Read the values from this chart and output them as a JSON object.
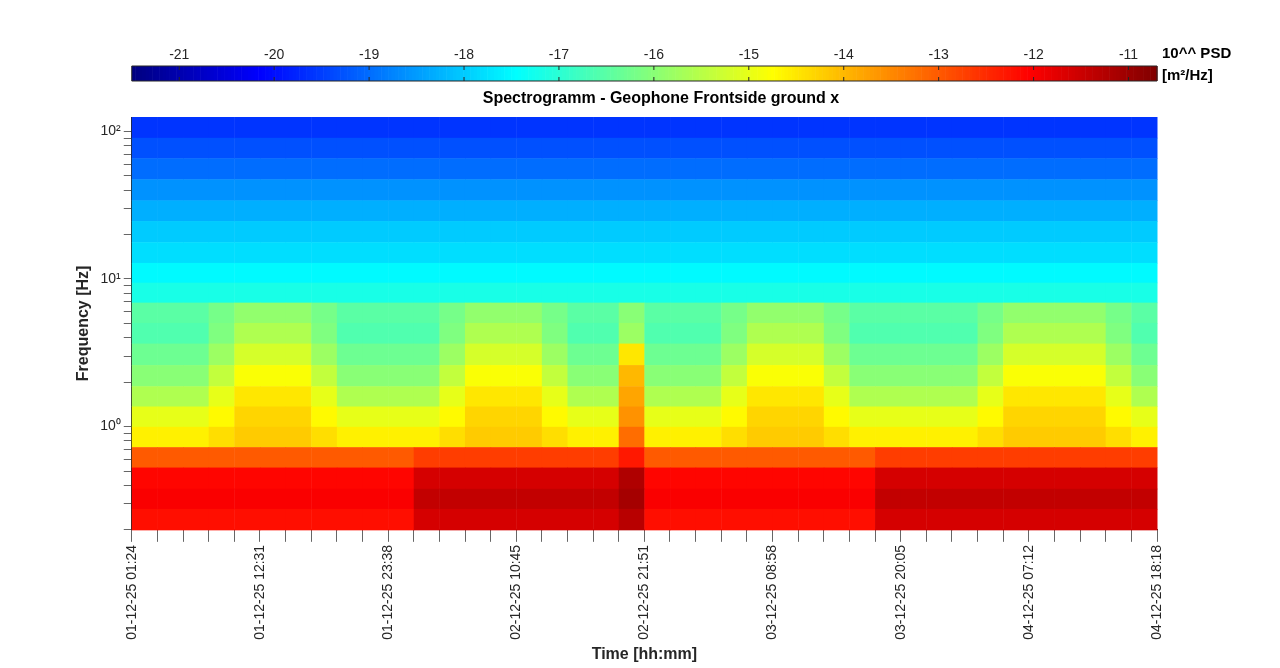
{
  "chart_data": {
    "type": "heatmap",
    "title": "Spectrogramm - Geophone Frontside ground x",
    "xlabel": "Time [hh:mm]",
    "ylabel": "Frequency [Hz]",
    "clabel": "10^^ PSD [m²/Hz]",
    "x": [
      "--12-01T02:31",
      "--12-01T04:44",
      "--12-01T06:57",
      "--12-01T09:11",
      "--12-01T11:24",
      "--12-01T13:38",
      "--12-01T15:51",
      "--12-01T18:04",
      "--12-01T20:18",
      "--12-01T22:31",
      "--12-02T00:44",
      "--12-02T02:58",
      "--12-02T05:11",
      "--12-02T07:24",
      "--12-02T09:38",
      "--12-02T11:51",
      "--12-02T14:04",
      "--12-02T16:18",
      "--12-02T18:31",
      "--12-02T20:44",
      "--12-02T22:58",
      "--12-03T01:11",
      "--12-03T03:24",
      "--12-03T05:38",
      "--12-03T07:51",
      "--12-03T10:04",
      "--12-03T12:18",
      "--12-03T14:31",
      "--12-03T16:44",
      "--12-03T18:58",
      "--12-03T21:11",
      "--12-03T23:24",
      "--12-04T01:38",
      "--12-04T03:51",
      "--12-04T06:04",
      "--12-04T08:18",
      "--12-04T10:31",
      "--12-04T12:44",
      "--12-04T14:58",
      "--12-04T17:11"
    ],
    "y": [
      106,
      77,
      56,
      40,
      29,
      21,
      15,
      11,
      8.1,
      5.9,
      4.3,
      3.1,
      2.2,
      1.6,
      1.17,
      0.85,
      0.62,
      0.45,
      0.32,
      0.24
    ],
    "cells": [
      [
        -19.6,
        -19.6,
        -19.6,
        -19.6,
        -19.6,
        -19.6,
        -19.6,
        -19.6,
        -19.6,
        -19.6,
        -19.6,
        -19.6,
        -19.6,
        -19.6,
        -19.6,
        -19.6,
        -19.6,
        -19.6,
        -19.6,
        -19.6,
        -19.6,
        -19.6,
        -19.6,
        -19.6,
        -19.6,
        -19.6,
        -19.6,
        -19.6,
        -19.6,
        -19.6,
        -19.6,
        -19.6,
        -19.6,
        -19.6,
        -19.6,
        -19.6,
        -19.6,
        -19.6,
        -19.6,
        -19.6
      ],
      [
        -19.3,
        -19.3,
        -19.3,
        -19.3,
        -19.3,
        -19.3,
        -19.3,
        -19.3,
        -19.3,
        -19.3,
        -19.3,
        -19.3,
        -19.3,
        -19.3,
        -19.3,
        -19.3,
        -19.3,
        -19.3,
        -19.3,
        -19.3,
        -19.3,
        -19.3,
        -19.3,
        -19.3,
        -19.3,
        -19.3,
        -19.3,
        -19.3,
        -19.3,
        -19.3,
        -19.3,
        -19.3,
        -19.3,
        -19.3,
        -19.3,
        -19.3,
        -19.3,
        -19.3,
        -19.3,
        -19.3
      ],
      [
        -19.0,
        -19.0,
        -19.0,
        -19.0,
        -19.0,
        -19.0,
        -19.0,
        -19.0,
        -19.0,
        -19.0,
        -19.0,
        -19.0,
        -19.0,
        -19.0,
        -19.0,
        -19.0,
        -19.0,
        -19.0,
        -19.0,
        -19.0,
        -19.0,
        -19.0,
        -19.0,
        -19.0,
        -19.0,
        -19.0,
        -19.0,
        -19.0,
        -19.0,
        -19.0,
        -19.0,
        -19.0,
        -19.0,
        -19.0,
        -19.0,
        -19.0,
        -19.0,
        -19.0,
        -19.0,
        -19.0
      ],
      [
        -18.6,
        -18.6,
        -18.6,
        -18.6,
        -18.6,
        -18.6,
        -18.6,
        -18.6,
        -18.6,
        -18.6,
        -18.6,
        -18.6,
        -18.6,
        -18.6,
        -18.6,
        -18.6,
        -18.6,
        -18.6,
        -18.6,
        -18.6,
        -18.6,
        -18.6,
        -18.6,
        -18.6,
        -18.6,
        -18.6,
        -18.6,
        -18.6,
        -18.6,
        -18.6,
        -18.6,
        -18.6,
        -18.6,
        -18.6,
        -18.6,
        -18.6,
        -18.6,
        -18.6,
        -18.6,
        -18.6
      ],
      [
        -18.3,
        -18.3,
        -18.3,
        -18.3,
        -18.3,
        -18.3,
        -18.3,
        -18.3,
        -18.3,
        -18.3,
        -18.3,
        -18.3,
        -18.3,
        -18.3,
        -18.3,
        -18.3,
        -18.3,
        -18.3,
        -18.3,
        -18.3,
        -18.3,
        -18.3,
        -18.3,
        -18.3,
        -18.3,
        -18.3,
        -18.3,
        -18.3,
        -18.3,
        -18.3,
        -18.3,
        -18.3,
        -18.3,
        -18.3,
        -18.3,
        -18.3,
        -18.3,
        -18.3,
        -18.3,
        -18.3
      ],
      [
        -18.0,
        -18.0,
        -18.0,
        -18.0,
        -18.0,
        -18.0,
        -18.0,
        -18.0,
        -18.0,
        -18.0,
        -18.0,
        -18.0,
        -18.0,
        -18.0,
        -18.0,
        -18.0,
        -18.0,
        -18.0,
        -18.0,
        -18.0,
        -18.0,
        -18.0,
        -18.0,
        -18.0,
        -18.0,
        -18.0,
        -18.0,
        -18.0,
        -18.0,
        -18.0,
        -18.0,
        -18.0,
        -18.0,
        -18.0,
        -18.0,
        -18.0,
        -18.0,
        -18.0,
        -18.0,
        -18.0
      ],
      [
        -17.8,
        -17.8,
        -17.8,
        -17.8,
        -17.8,
        -17.8,
        -17.8,
        -17.8,
        -17.8,
        -17.8,
        -17.8,
        -17.8,
        -17.8,
        -17.8,
        -17.8,
        -17.8,
        -17.8,
        -17.8,
        -17.8,
        -17.8,
        -17.8,
        -17.8,
        -17.8,
        -17.8,
        -17.8,
        -17.8,
        -17.8,
        -17.8,
        -17.8,
        -17.8,
        -17.8,
        -17.8,
        -17.8,
        -17.8,
        -17.8,
        -17.8,
        -17.8,
        -17.8,
        -17.8,
        -17.8
      ],
      [
        -17.5,
        -17.5,
        -17.5,
        -17.5,
        -17.5,
        -17.5,
        -17.5,
        -17.5,
        -17.5,
        -17.5,
        -17.5,
        -17.5,
        -17.5,
        -17.5,
        -17.5,
        -17.5,
        -17.5,
        -17.5,
        -17.5,
        -17.5,
        -17.5,
        -17.5,
        -17.5,
        -17.5,
        -17.5,
        -17.5,
        -17.5,
        -17.5,
        -17.5,
        -17.5,
        -17.5,
        -17.5,
        -17.5,
        -17.5,
        -17.5,
        -17.5,
        -17.5,
        -17.5,
        -17.5,
        -17.5
      ],
      [
        -17.2,
        -17.2,
        -17.2,
        -17.2,
        -17.2,
        -17.2,
        -17.2,
        -17.2,
        -17.2,
        -17.2,
        -17.2,
        -17.2,
        -17.2,
        -17.2,
        -17.2,
        -17.2,
        -17.2,
        -17.2,
        -17.2,
        -17.2,
        -17.2,
        -17.2,
        -17.2,
        -17.2,
        -17.2,
        -17.2,
        -17.2,
        -17.2,
        -17.2,
        -17.2,
        -17.2,
        -17.2,
        -17.2,
        -17.2,
        -17.2,
        -17.2,
        -17.2,
        -17.2,
        -17.2,
        -17.2
      ],
      [
        -16.5,
        -16.5,
        -16.5,
        -16.2,
        -15.9,
        -15.9,
        -15.9,
        -16.2,
        -16.5,
        -16.5,
        -16.5,
        -16.5,
        -16.2,
        -15.9,
        -15.9,
        -15.9,
        -16.2,
        -16.5,
        -16.5,
        -16.0,
        -16.5,
        -16.5,
        -16.5,
        -16.2,
        -15.9,
        -15.9,
        -15.9,
        -16.2,
        -16.5,
        -16.5,
        -16.5,
        -16.5,
        -16.5,
        -16.2,
        -15.9,
        -15.9,
        -15.9,
        -15.9,
        -16.2,
        -16.5
      ],
      [
        -16.6,
        -16.6,
        -16.6,
        -16.1,
        -15.6,
        -15.6,
        -15.6,
        -16.1,
        -16.6,
        -16.6,
        -16.6,
        -16.6,
        -16.1,
        -15.6,
        -15.6,
        -15.6,
        -16.1,
        -16.6,
        -16.6,
        -15.8,
        -16.6,
        -16.6,
        -16.6,
        -16.1,
        -15.6,
        -15.6,
        -15.6,
        -16.1,
        -16.6,
        -16.6,
        -16.6,
        -16.6,
        -16.6,
        -16.1,
        -15.6,
        -15.6,
        -15.6,
        -15.6,
        -16.1,
        -16.6
      ],
      [
        -16.3,
        -16.3,
        -16.3,
        -15.8,
        -15.2,
        -15.2,
        -15.2,
        -15.8,
        -16.3,
        -16.3,
        -16.3,
        -16.3,
        -15.8,
        -15.2,
        -15.2,
        -15.2,
        -15.8,
        -16.3,
        -16.3,
        -14.5,
        -16.3,
        -16.3,
        -16.3,
        -15.8,
        -15.2,
        -15.2,
        -15.2,
        -15.8,
        -16.3,
        -16.3,
        -16.3,
        -16.3,
        -16.3,
        -15.8,
        -15.2,
        -15.2,
        -15.2,
        -15.2,
        -15.8,
        -16.3
      ],
      [
        -16.0,
        -16.0,
        -16.0,
        -15.4,
        -14.8,
        -14.8,
        -14.8,
        -15.4,
        -16.0,
        -16.0,
        -16.0,
        -16.0,
        -15.4,
        -14.8,
        -14.8,
        -14.8,
        -15.4,
        -16.0,
        -16.0,
        -14.0,
        -16.0,
        -16.0,
        -16.0,
        -15.4,
        -14.8,
        -14.8,
        -14.8,
        -15.4,
        -16.0,
        -16.0,
        -16.0,
        -16.0,
        -16.0,
        -15.4,
        -14.8,
        -14.8,
        -14.8,
        -14.8,
        -15.4,
        -16.0
      ],
      [
        -15.6,
        -15.6,
        -15.6,
        -15.0,
        -14.5,
        -14.5,
        -14.5,
        -15.0,
        -15.6,
        -15.6,
        -15.6,
        -15.6,
        -15.0,
        -14.5,
        -14.5,
        -14.5,
        -15.0,
        -15.6,
        -15.6,
        -13.8,
        -15.6,
        -15.6,
        -15.6,
        -15.0,
        -14.5,
        -14.5,
        -14.5,
        -15.0,
        -15.6,
        -15.6,
        -15.6,
        -15.6,
        -15.6,
        -15.0,
        -14.5,
        -14.5,
        -14.5,
        -14.5,
        -15.0,
        -15.6
      ],
      [
        -15.0,
        -15.0,
        -15.0,
        -14.7,
        -14.3,
        -14.3,
        -14.3,
        -14.7,
        -15.0,
        -15.0,
        -15.0,
        -15.0,
        -14.7,
        -14.3,
        -14.3,
        -14.3,
        -14.7,
        -15.0,
        -15.0,
        -13.6,
        -15.0,
        -15.0,
        -15.0,
        -14.7,
        -14.3,
        -14.3,
        -14.3,
        -14.7,
        -15.0,
        -15.0,
        -15.0,
        -15.0,
        -15.0,
        -14.7,
        -14.3,
        -14.3,
        -14.3,
        -14.3,
        -14.7,
        -15.0
      ],
      [
        -14.6,
        -14.6,
        -14.6,
        -14.4,
        -14.2,
        -14.2,
        -14.2,
        -14.4,
        -14.6,
        -14.6,
        -14.6,
        -14.6,
        -14.4,
        -14.2,
        -14.2,
        -14.2,
        -14.4,
        -14.6,
        -14.6,
        -13.2,
        -14.6,
        -14.6,
        -14.6,
        -14.4,
        -14.2,
        -14.2,
        -14.2,
        -14.4,
        -14.6,
        -14.6,
        -14.6,
        -14.6,
        -14.6,
        -14.4,
        -14.2,
        -14.2,
        -14.2,
        -14.2,
        -14.4,
        -14.6
      ],
      [
        -13.0,
        -13.0,
        -13.0,
        -13.0,
        -13.0,
        -13.0,
        -13.0,
        -13.0,
        -13.0,
        -13.0,
        -13.0,
        -12.7,
        -12.7,
        -12.7,
        -12.7,
        -12.7,
        -12.7,
        -12.7,
        -12.7,
        -12.3,
        -13.0,
        -13.0,
        -13.0,
        -13.0,
        -13.0,
        -13.0,
        -13.0,
        -13.0,
        -13.0,
        -12.7,
        -12.7,
        -12.7,
        -12.7,
        -12.7,
        -12.7,
        -12.7,
        -12.7,
        -12.7,
        -12.7,
        -12.7
      ],
      [
        -12.1,
        -12.1,
        -12.1,
        -12.1,
        -12.1,
        -12.1,
        -12.1,
        -12.1,
        -12.1,
        -12.1,
        -12.1,
        -11.6,
        -11.6,
        -11.6,
        -11.6,
        -11.6,
        -11.6,
        -11.6,
        -11.6,
        -11.2,
        -12.1,
        -12.1,
        -12.1,
        -12.1,
        -12.1,
        -12.1,
        -12.1,
        -12.1,
        -12.1,
        -11.6,
        -11.6,
        -11.6,
        -11.6,
        -11.6,
        -11.6,
        -11.6,
        -11.6,
        -11.6,
        -11.6,
        -11.6
      ],
      [
        -12.0,
        -12.0,
        -12.0,
        -12.0,
        -12.0,
        -12.0,
        -12.0,
        -12.0,
        -12.0,
        -12.0,
        -12.0,
        -11.4,
        -11.4,
        -11.4,
        -11.4,
        -11.4,
        -11.4,
        -11.4,
        -11.4,
        -11.1,
        -12.0,
        -12.0,
        -12.0,
        -12.0,
        -12.0,
        -12.0,
        -12.0,
        -12.0,
        -12.0,
        -11.4,
        -11.4,
        -11.4,
        -11.4,
        -11.4,
        -11.4,
        -11.4,
        -11.4,
        -11.4,
        -11.4,
        -11.4
      ],
      [
        -12.2,
        -12.2,
        -12.2,
        -12.2,
        -12.2,
        -12.2,
        -12.2,
        -12.2,
        -12.2,
        -12.2,
        -12.2,
        -11.6,
        -11.6,
        -11.6,
        -11.6,
        -11.6,
        -11.6,
        -11.6,
        -11.6,
        -11.3,
        -12.2,
        -12.2,
        -12.2,
        -12.2,
        -12.2,
        -12.2,
        -12.2,
        -12.2,
        -12.2,
        -11.6,
        -11.6,
        -11.6,
        -11.6,
        -11.6,
        -11.6,
        -11.6,
        -11.6,
        -11.6,
        -11.6,
        -11.6
      ]
    ],
    "clim": [
      -21.5,
      -10.7
    ],
    "cticks": [
      -21,
      -20,
      -19,
      -18,
      -17,
      -16,
      -15,
      -14,
      -13,
      -12,
      -11
    ],
    "xlim": [
      "--12-01T01:24",
      "--12-04T18:18"
    ],
    "xticks": [
      {
        "value": "--12-01T01:24",
        "label": "01-12-25 01:24"
      },
      {
        "value": "--12-01T03:37",
        "label": null
      },
      {
        "value": "--12-01T05:51",
        "label": null
      },
      {
        "value": "--12-01T08:04",
        "label": null
      },
      {
        "value": "--12-01T10:17",
        "label": null
      },
      {
        "value": "--12-01T12:31",
        "label": "01-12-25 12:31"
      },
      {
        "value": "--12-01T14:44",
        "label": null
      },
      {
        "value": "--12-01T16:57",
        "label": null
      },
      {
        "value": "--12-01T19:11",
        "label": null
      },
      {
        "value": "--12-01T21:24",
        "label": null
      },
      {
        "value": "--12-01T23:38",
        "label": "01-12-25 23:38"
      },
      {
        "value": "--12-02T01:51",
        "label": null
      },
      {
        "value": "--12-02T04:04",
        "label": null
      },
      {
        "value": "--12-02T06:18",
        "label": null
      },
      {
        "value": "--12-02T08:31",
        "label": null
      },
      {
        "value": "--12-02T10:45",
        "label": "02-12-25 10:45"
      },
      {
        "value": "--12-02T12:58",
        "label": null
      },
      {
        "value": "--12-02T15:11",
        "label": null
      },
      {
        "value": "--12-02T17:24",
        "label": null
      },
      {
        "value": "--12-02T19:38",
        "label": null
      },
      {
        "value": "--12-02T21:51",
        "label": "02-12-25 21:51"
      },
      {
        "value": "--12-03T00:04",
        "label": null
      },
      {
        "value": "--12-03T02:18",
        "label": null
      },
      {
        "value": "--12-03T04:31",
        "label": null
      },
      {
        "value": "--12-03T06:44",
        "label": null
      },
      {
        "value": "--12-03T08:58",
        "label": "03-12-25 08:58"
      },
      {
        "value": "--12-03T11:11",
        "label": null
      },
      {
        "value": "--12-03T13:24",
        "label": null
      },
      {
        "value": "--12-03T15:38",
        "label": null
      },
      {
        "value": "--12-03T17:51",
        "label": null
      },
      {
        "value": "--12-03T20:05",
        "label": "03-12-25 20:05"
      },
      {
        "value": "--12-03T22:18",
        "label": null
      },
      {
        "value": "--12-04T00:31",
        "label": null
      },
      {
        "value": "--12-04T02:45",
        "label": null
      },
      {
        "value": "--12-04T04:58",
        "label": null
      },
      {
        "value": "--12-04T07:12",
        "label": "04-12-25 07:12"
      },
      {
        "value": "--12-04T09:24",
        "label": null
      },
      {
        "value": "--12-04T11:38",
        "label": null
      },
      {
        "value": "--12-04T13:51",
        "label": null
      },
      {
        "value": "--12-04T16:04",
        "label": null
      },
      {
        "value": "--12-04T18:18",
        "label": "04-12-25 18:18"
      }
    ],
    "ylim": [
      0.2,
      125
    ],
    "yticks": [
      {
        "value": 0.2,
        "label": null
      },
      {
        "value": 0.3,
        "label": null
      },
      {
        "value": 0.4,
        "label": null
      },
      {
        "value": 0.5,
        "label": null
      },
      {
        "value": 0.6,
        "label": null
      },
      {
        "value": 0.7,
        "label": null
      },
      {
        "value": 0.8,
        "label": null
      },
      {
        "value": 0.9,
        "label": null
      },
      {
        "value": 1,
        "label": "10⁰"
      },
      {
        "value": 2,
        "label": null
      },
      {
        "value": 3,
        "label": null
      },
      {
        "value": 4,
        "label": null
      },
      {
        "value": 5,
        "label": null
      },
      {
        "value": 6,
        "label": null
      },
      {
        "value": 7,
        "label": null
      },
      {
        "value": 8,
        "label": null
      },
      {
        "value": 9,
        "label": null
      },
      {
        "value": 10,
        "label": "10¹"
      },
      {
        "value": 20,
        "label": null
      },
      {
        "value": 30,
        "label": null
      },
      {
        "value": 40,
        "label": null
      },
      {
        "value": 50,
        "label": null
      },
      {
        "value": 60,
        "label": null
      },
      {
        "value": 70,
        "label": null
      },
      {
        "value": 80,
        "label": null
      },
      {
        "value": 90,
        "label": null
      },
      {
        "value": 100,
        "label": "10²"
      }
    ],
    "log": "y"
  }
}
